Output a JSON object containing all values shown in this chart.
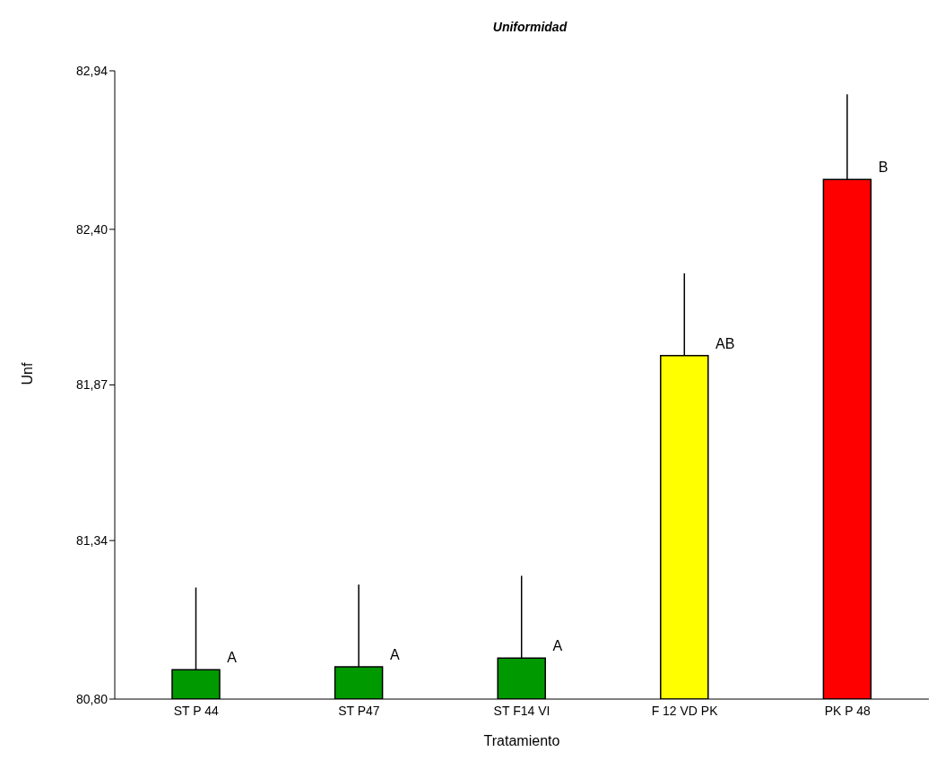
{
  "chart_data": {
    "type": "bar",
    "title": "Uniformidad",
    "xlabel": "Tratamiento",
    "ylabel": "Unf",
    "categories": [
      "ST P 44",
      "ST P47",
      "ST F14 VI",
      "F  12 VD PK",
      "PK P 48"
    ],
    "values": [
      80.9,
      80.91,
      80.94,
      81.97,
      82.57
    ],
    "colors": [
      "#009900",
      "#009900",
      "#009900",
      "#ffff00",
      "#ff0000"
    ],
    "errors": [
      [
        80.9,
        81.18
      ],
      [
        80.91,
        81.19
      ],
      [
        80.94,
        81.22
      ],
      [
        81.97,
        82.25
      ],
      [
        82.57,
        82.86
      ]
    ],
    "ylim": [
      80.8,
      82.94
    ],
    "yticks": [
      {
        "value": 80.8,
        "label": "80,80"
      },
      {
        "value": 81.34,
        "label": "81,34"
      },
      {
        "value": 81.87,
        "label": "81,87"
      },
      {
        "value": 82.4,
        "label": "82,40"
      },
      {
        "value": 82.94,
        "label": "82,94"
      }
    ],
    "annotations": [
      {
        "text": "A",
        "x": "ST P 44",
        "y": 80.9
      },
      {
        "text": "A",
        "x": "ST P47",
        "y": 80.91
      },
      {
        "text": "A",
        "x": "ST F14 VI",
        "y": 80.94
      },
      {
        "text": "AB",
        "x": "F  12 VD PK",
        "y": 81.97
      },
      {
        "text": "B",
        "x": "PK P 48",
        "y": 82.57
      }
    ],
    "grid": false,
    "legend": false
  }
}
